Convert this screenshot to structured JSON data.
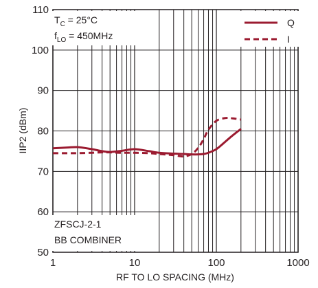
{
  "chart_data": {
    "type": "line",
    "xscale": "log",
    "xlim": [
      1,
      1000
    ],
    "ylim": [
      50,
      110
    ],
    "x_ticks": [
      1,
      10,
      100,
      1000
    ],
    "x_tick_labels": [
      "1",
      "10",
      "100",
      "1000"
    ],
    "y_ticks": [
      50,
      60,
      70,
      80,
      90,
      100,
      110
    ],
    "y_tick_labels": [
      "50",
      "60",
      "70",
      "80",
      "90",
      "100",
      "110"
    ],
    "xlabel": "RF TO LO SPACING (MHz)",
    "ylabel": "IIP2 (dBm)",
    "grid": true,
    "legend_position": "top-right",
    "annotations": {
      "tc_main": "T",
      "tc_sub": "C",
      "tc_rest": " = 25°C",
      "flo_main": "f",
      "flo_sub": "LO",
      "flo_rest": " = 450MHz",
      "combiner_line1": "ZFSCJ-2-1",
      "combiner_line2": "BB COMBINER"
    },
    "series": [
      {
        "name": "Q",
        "style": "solid",
        "color": "#9b1b30",
        "x": [
          1,
          1.5,
          2,
          3,
          4,
          5,
          7,
          10,
          15,
          20,
          30,
          40,
          50,
          60,
          70,
          80,
          100,
          120,
          150,
          200
        ],
        "y": [
          75.7,
          75.9,
          76.0,
          75.5,
          75.0,
          74.8,
          75.1,
          75.5,
          75.0,
          74.6,
          74.4,
          74.3,
          74.2,
          74.2,
          74.3,
          74.6,
          75.5,
          76.8,
          78.5,
          80.5
        ]
      },
      {
        "name": "I",
        "style": "dashed",
        "color": "#9b1b30",
        "x": [
          1,
          1.5,
          2,
          3,
          4,
          5,
          7,
          10,
          15,
          20,
          30,
          40,
          50,
          60,
          70,
          80,
          100,
          130,
          160,
          200
        ],
        "y": [
          74.5,
          74.5,
          74.5,
          74.6,
          74.7,
          74.7,
          74.6,
          74.6,
          74.5,
          74.3,
          74.0,
          73.7,
          74.3,
          75.8,
          78.0,
          80.3,
          82.5,
          83.2,
          83.1,
          82.8
        ]
      }
    ]
  }
}
